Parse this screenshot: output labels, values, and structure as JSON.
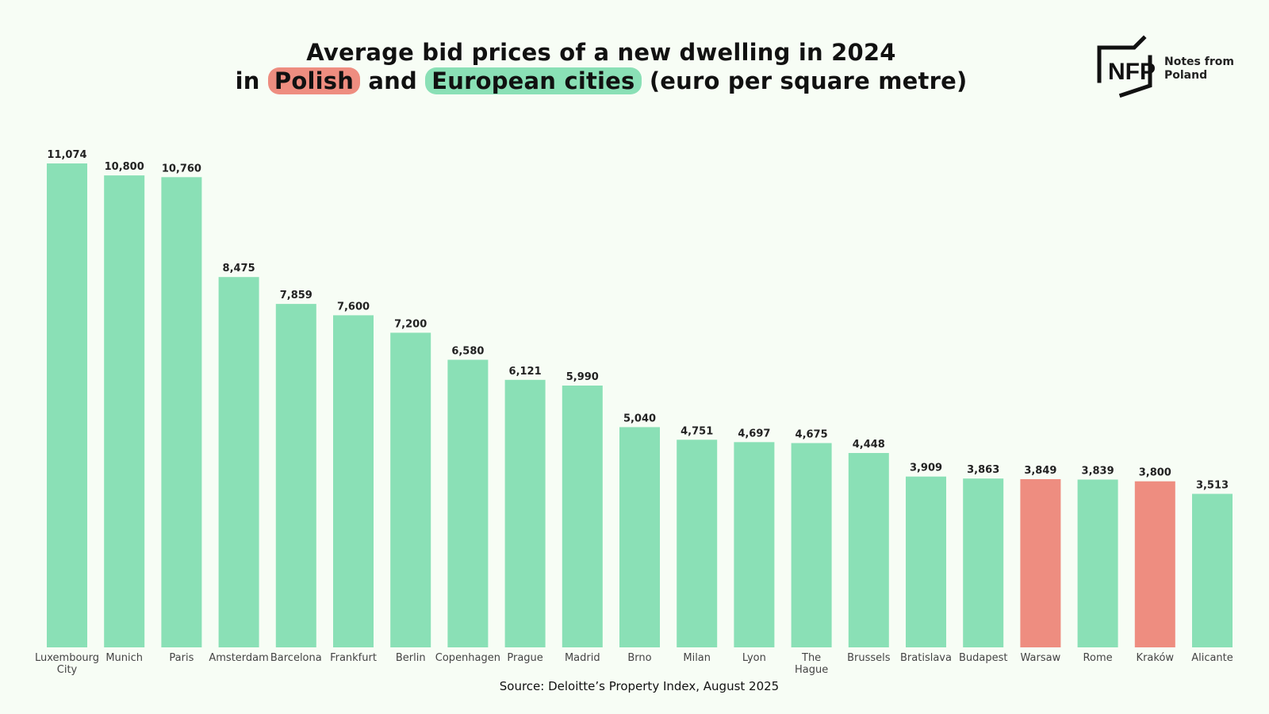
{
  "title": {
    "line1": "Average bid prices of a new dwelling in 2024",
    "line2_prefix": "in",
    "highlight_polish": "Polish",
    "and_word": "and",
    "highlight_european": "European cities",
    "line2_suffix": "(euro per square metre)"
  },
  "logo": {
    "mark": "NFP",
    "line1": "Notes from",
    "line2": "Poland"
  },
  "source": "Source: Deloitte’s Property Index, August 2025",
  "colors": {
    "european": "#8ae0b6",
    "polish": "#ee8d80",
    "background": "#f7fdf5"
  },
  "chart_data": {
    "type": "bar",
    "title": "Average bid prices of a new dwelling in 2024 in Polish and European cities (euro per square metre)",
    "xlabel": "",
    "ylabel": "",
    "ylim": [
      0,
      11074
    ],
    "grid": false,
    "categories": [
      "Luxembourg City",
      "Munich",
      "Paris",
      "Amsterdam",
      "Barcelona",
      "Frankfurt",
      "Berlin",
      "Copenhagen",
      "Prague",
      "Madrid",
      "Brno",
      "Milan",
      "Lyon",
      "The Hague",
      "Brussels",
      "Bratislava",
      "Budapest",
      "Warsaw",
      "Rome",
      "Kraków",
      "Alicante"
    ],
    "category_lines": [
      [
        "Luxembourg",
        "City"
      ],
      [
        "Munich"
      ],
      [
        "Paris"
      ],
      [
        "Amsterdam"
      ],
      [
        "Barcelona"
      ],
      [
        "Frankfurt"
      ],
      [
        "Berlin"
      ],
      [
        "Copenhagen"
      ],
      [
        "Prague"
      ],
      [
        "Madrid"
      ],
      [
        "Brno"
      ],
      [
        "Milan"
      ],
      [
        "Lyon"
      ],
      [
        "The",
        "Hague"
      ],
      [
        "Brussels"
      ],
      [
        "Bratislava"
      ],
      [
        "Budapest"
      ],
      [
        "Warsaw"
      ],
      [
        "Rome"
      ],
      [
        "Kraków"
      ],
      [
        "Alicante"
      ]
    ],
    "values": [
      11074,
      10800,
      10760,
      8475,
      7859,
      7600,
      7200,
      6580,
      6121,
      5990,
      5040,
      4751,
      4697,
      4675,
      4448,
      3909,
      3863,
      3849,
      3839,
      3800,
      3513
    ],
    "value_labels": [
      "11,074",
      "10,800",
      "10,760",
      "8,475",
      "7,859",
      "7,600",
      "7,200",
      "6,580",
      "6,121",
      "5,990",
      "5,040",
      "4,751",
      "4,697",
      "4,675",
      "4,448",
      "3,909",
      "3,863",
      "3,849",
      "3,839",
      "3,800",
      "3,513"
    ],
    "groups": [
      "european",
      "european",
      "european",
      "european",
      "european",
      "european",
      "european",
      "european",
      "european",
      "european",
      "european",
      "european",
      "european",
      "european",
      "european",
      "european",
      "european",
      "polish",
      "european",
      "polish",
      "european"
    ]
  }
}
